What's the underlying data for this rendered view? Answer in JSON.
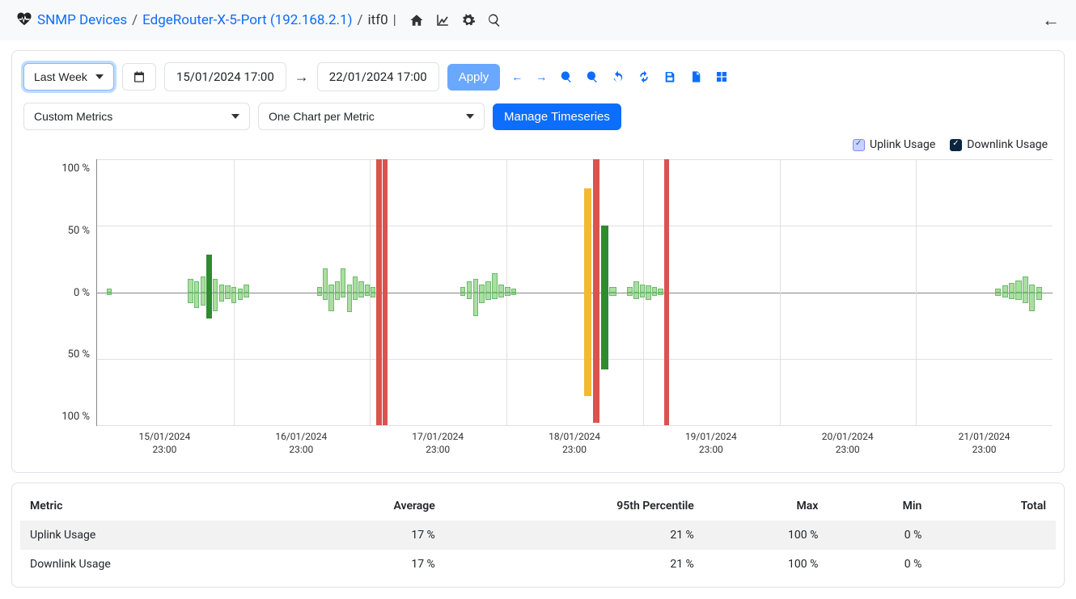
{
  "breadcrumb": {
    "root": "SNMP Devices",
    "device": "EdgeRouter-X-5-Port (192.168.2.1)",
    "interface": "itf0"
  },
  "toolbar": {
    "range_preset": "Last Week",
    "date_from": "15/01/2024 17:00",
    "date_to": "22/01/2024 17:00",
    "apply_label": "Apply",
    "metrics_select": "Custom Metrics",
    "chart_mode": "One Chart per Metric",
    "manage_ts": "Manage Timeseries"
  },
  "legend": {
    "uplink": "Uplink Usage",
    "downlink": "Downlink Usage"
  },
  "chart": {
    "type": "bar-mirror",
    "background_color": "#ffffff",
    "grid_color": "#e0e0e0",
    "axis_color": "#888888",
    "ylim": [
      -100,
      100
    ],
    "yticks": [
      "100 %",
      "50 %",
      "0 %",
      "50 %",
      "100 %"
    ],
    "xticks": [
      {
        "date": "15/01/2024",
        "time": "23:00"
      },
      {
        "date": "16/01/2024",
        "time": "23:00"
      },
      {
        "date": "17/01/2024",
        "time": "23:00"
      },
      {
        "date": "18/01/2024",
        "time": "23:00"
      },
      {
        "date": "19/01/2024",
        "time": "23:00"
      },
      {
        "date": "20/01/2024",
        "time": "23:00"
      },
      {
        "date": "21/01/2024",
        "time": "23:00"
      }
    ],
    "colors": {
      "light_green_up": "#a9dfa0",
      "light_green_down": "#a9dfa0",
      "dark_green": "#2e8b2e",
      "yellow": "#f5b82e",
      "red": "#d9534f"
    },
    "clusters": [
      {
        "start_pct": 1.0,
        "width_pct": 0.6,
        "bars": [
          {
            "up": 3,
            "down": 2,
            "color": "light"
          }
        ]
      },
      {
        "start_pct": 9.5,
        "width_pct": 6.5,
        "bars": [
          {
            "up": 10,
            "down": 8,
            "color": "light"
          },
          {
            "up": 8,
            "down": 12,
            "color": "light"
          },
          {
            "up": 12,
            "down": 10,
            "color": "light"
          },
          {
            "up": 28,
            "down": 20,
            "color": "dark"
          },
          {
            "up": 10,
            "down": 14,
            "color": "light"
          },
          {
            "up": 6,
            "down": 7,
            "color": "light"
          },
          {
            "up": 5,
            "down": 5,
            "color": "light"
          },
          {
            "up": 4,
            "down": 8,
            "color": "light"
          },
          {
            "up": 3,
            "down": 6,
            "color": "light"
          },
          {
            "up": 6,
            "down": 4,
            "color": "light"
          }
        ]
      },
      {
        "start_pct": 23,
        "width_pct": 7.5,
        "bars": [
          {
            "up": 4,
            "down": 3,
            "color": "light"
          },
          {
            "up": 18,
            "down": 6,
            "color": "light"
          },
          {
            "up": 6,
            "down": 14,
            "color": "light"
          },
          {
            "up": 8,
            "down": 6,
            "color": "light"
          },
          {
            "up": 18,
            "down": 4,
            "color": "light"
          },
          {
            "up": 6,
            "down": 15,
            "color": "light"
          },
          {
            "up": 12,
            "down": 6,
            "color": "light"
          },
          {
            "up": 8,
            "down": 4,
            "color": "light"
          },
          {
            "up": 6,
            "down": 3,
            "color": "light"
          },
          {
            "up": 4,
            "down": 4,
            "color": "light"
          },
          {
            "up": 100,
            "down": 100,
            "color": "red"
          },
          {
            "up": 100,
            "down": 100,
            "color": "red"
          }
        ]
      },
      {
        "start_pct": 38,
        "width_pct": 6,
        "bars": [
          {
            "up": 4,
            "down": 3,
            "color": "light"
          },
          {
            "up": 8,
            "down": 5,
            "color": "light"
          },
          {
            "up": 10,
            "down": 18,
            "color": "light"
          },
          {
            "up": 6,
            "down": 8,
            "color": "light"
          },
          {
            "up": 8,
            "down": 6,
            "color": "light"
          },
          {
            "up": 14,
            "down": 5,
            "color": "light"
          },
          {
            "up": 6,
            "down": 4,
            "color": "light"
          },
          {
            "up": 4,
            "down": 3,
            "color": "light"
          },
          {
            "up": 3,
            "down": 2,
            "color": "light"
          }
        ]
      },
      {
        "start_pct": 51,
        "width_pct": 3.5,
        "bars": [
          {
            "up": 78,
            "down": 78,
            "color": "yellow"
          },
          {
            "up": 100,
            "down": 98,
            "color": "red"
          },
          {
            "up": 50,
            "down": 58,
            "color": "dark"
          },
          {
            "up": 4,
            "down": 3,
            "color": "light"
          }
        ]
      },
      {
        "start_pct": 55.5,
        "width_pct": 4.5,
        "bars": [
          {
            "up": 4,
            "down": 3,
            "color": "light"
          },
          {
            "up": 8,
            "down": 5,
            "color": "light"
          },
          {
            "up": 6,
            "down": 4,
            "color": "light"
          },
          {
            "up": 5,
            "down": 6,
            "color": "light"
          },
          {
            "up": 4,
            "down": 3,
            "color": "light"
          },
          {
            "up": 3,
            "down": 2,
            "color": "light"
          },
          {
            "up": 100,
            "down": 100,
            "color": "red"
          }
        ]
      },
      {
        "start_pct": 94,
        "width_pct": 5,
        "bars": [
          {
            "up": 3,
            "down": 3,
            "color": "light"
          },
          {
            "up": 5,
            "down": 4,
            "color": "light"
          },
          {
            "up": 7,
            "down": 5,
            "color": "light"
          },
          {
            "up": 9,
            "down": 6,
            "color": "light"
          },
          {
            "up": 12,
            "down": 8,
            "color": "light"
          },
          {
            "up": 6,
            "down": 14,
            "color": "light"
          },
          {
            "up": 4,
            "down": 6,
            "color": "light"
          }
        ]
      }
    ]
  },
  "stats": {
    "columns": [
      "Metric",
      "Average",
      "95th Percentile",
      "Max",
      "Min",
      "Total"
    ],
    "rows": [
      {
        "metric": "Uplink Usage",
        "avg": "17 %",
        "p95": "21 %",
        "max": "100 %",
        "min": "0 %",
        "total": ""
      },
      {
        "metric": "Downlink Usage",
        "avg": "17 %",
        "p95": "21 %",
        "max": "100 %",
        "min": "0 %",
        "total": ""
      }
    ]
  }
}
